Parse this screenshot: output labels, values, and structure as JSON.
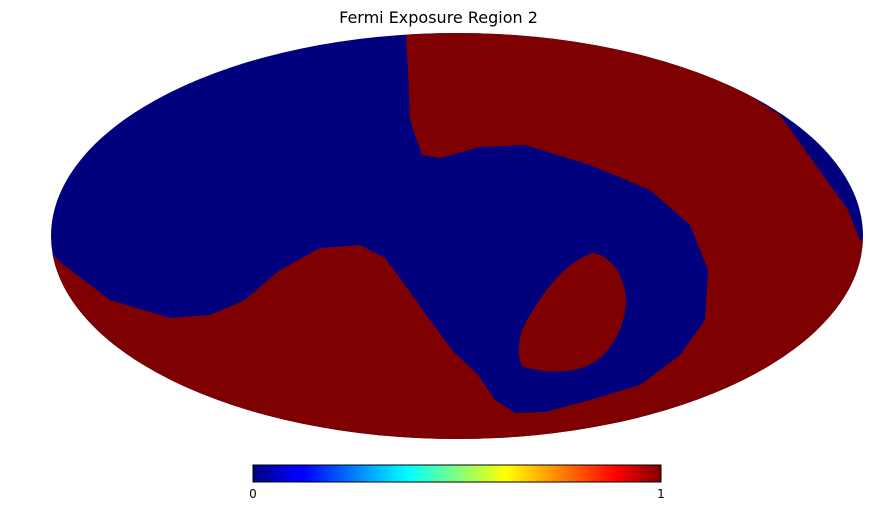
{
  "chart_data": {
    "type": "heatmap",
    "projection": "mollweide",
    "title": "Fermi Exposure Region 2",
    "colormap": "jet",
    "value_range": [
      0,
      1
    ],
    "colorbar": {
      "orientation": "horizontal",
      "placement": "bottom",
      "tick_labels": [
        "0",
        "1"
      ]
    },
    "regions": [
      {
        "value": 0,
        "color": "#00007f"
      },
      {
        "value": 1,
        "color": "#7f0000"
      }
    ]
  }
}
